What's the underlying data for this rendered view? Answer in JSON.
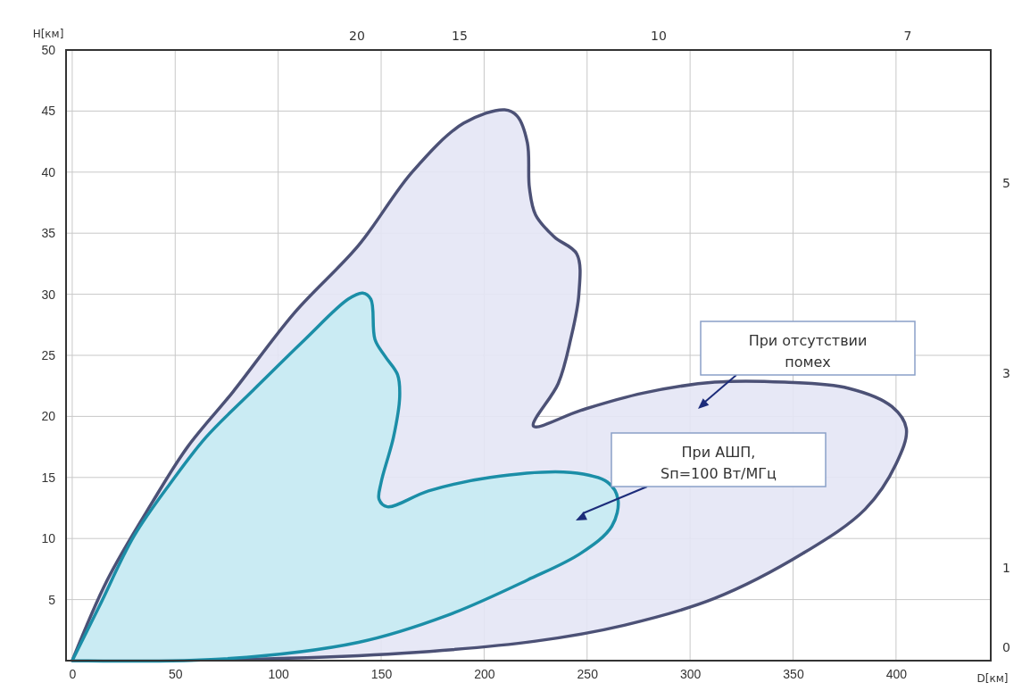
{
  "chart_data": {
    "type": "area",
    "xlabel": "D[км]",
    "ylabel": "H[км]",
    "xlim": [
      -3,
      446
    ],
    "ylim": [
      0,
      50
    ],
    "xticks": [
      0,
      50,
      100,
      150,
      200,
      250,
      300,
      350,
      400
    ],
    "yticks": [
      5,
      10,
      15,
      20,
      25,
      30,
      35,
      40,
      45,
      50
    ],
    "grid": true,
    "series": [
      {
        "color": "#e4e6f5",
        "x": [
          0,
          17,
          39,
          56,
          78,
          108,
          139,
          165,
          190,
          210,
          216,
          221,
          222,
          225,
          234,
          245,
          246,
          242,
          236,
          224,
          247,
          277,
          312,
          346,
          377,
          398,
          405,
          400,
          385,
          355,
          312,
          268,
          225,
          160,
          95,
          0
        ],
        "values": [
          0,
          6.6,
          13,
          17.5,
          22,
          28.5,
          34,
          40,
          44,
          45.1,
          44.6,
          42.4,
          38.7,
          36.5,
          34.7,
          33.3,
          30,
          26.3,
          22.7,
          19.2,
          20.5,
          21.9,
          22.8,
          22.8,
          22.3,
          20.8,
          19,
          16.1,
          12.4,
          8.8,
          5.1,
          2.9,
          1.6,
          0.6,
          0.15,
          0
        ]
      },
      {
        "color": "#c6ebf3",
        "x": [
          0,
          13,
          30,
          48,
          65,
          87,
          113,
          134,
          141,
          145,
          147,
          152,
          158,
          159,
          156,
          150,
          149,
          153,
          173,
          203,
          242,
          260,
          265,
          262,
          247,
          221,
          182,
          139,
          74,
          0
        ],
        "values": [
          0,
          4.4,
          10.2,
          14.6,
          18.3,
          22,
          26.3,
          29.6,
          30.1,
          29.6,
          26.3,
          24.9,
          23.4,
          21.6,
          18.3,
          14.6,
          13.2,
          12.6,
          13.9,
          15,
          15.4,
          14.6,
          13.2,
          11,
          8.8,
          6.6,
          3.7,
          1.5,
          0.15,
          0
        ]
      }
    ],
    "annotations": [
      "20",
      "15",
      "10",
      "7",
      "5",
      "3",
      "1",
      "0",
      "При отсутствии\nпомех",
      "При АШП,\nSп=100 Вт/МГц"
    ]
  }
}
